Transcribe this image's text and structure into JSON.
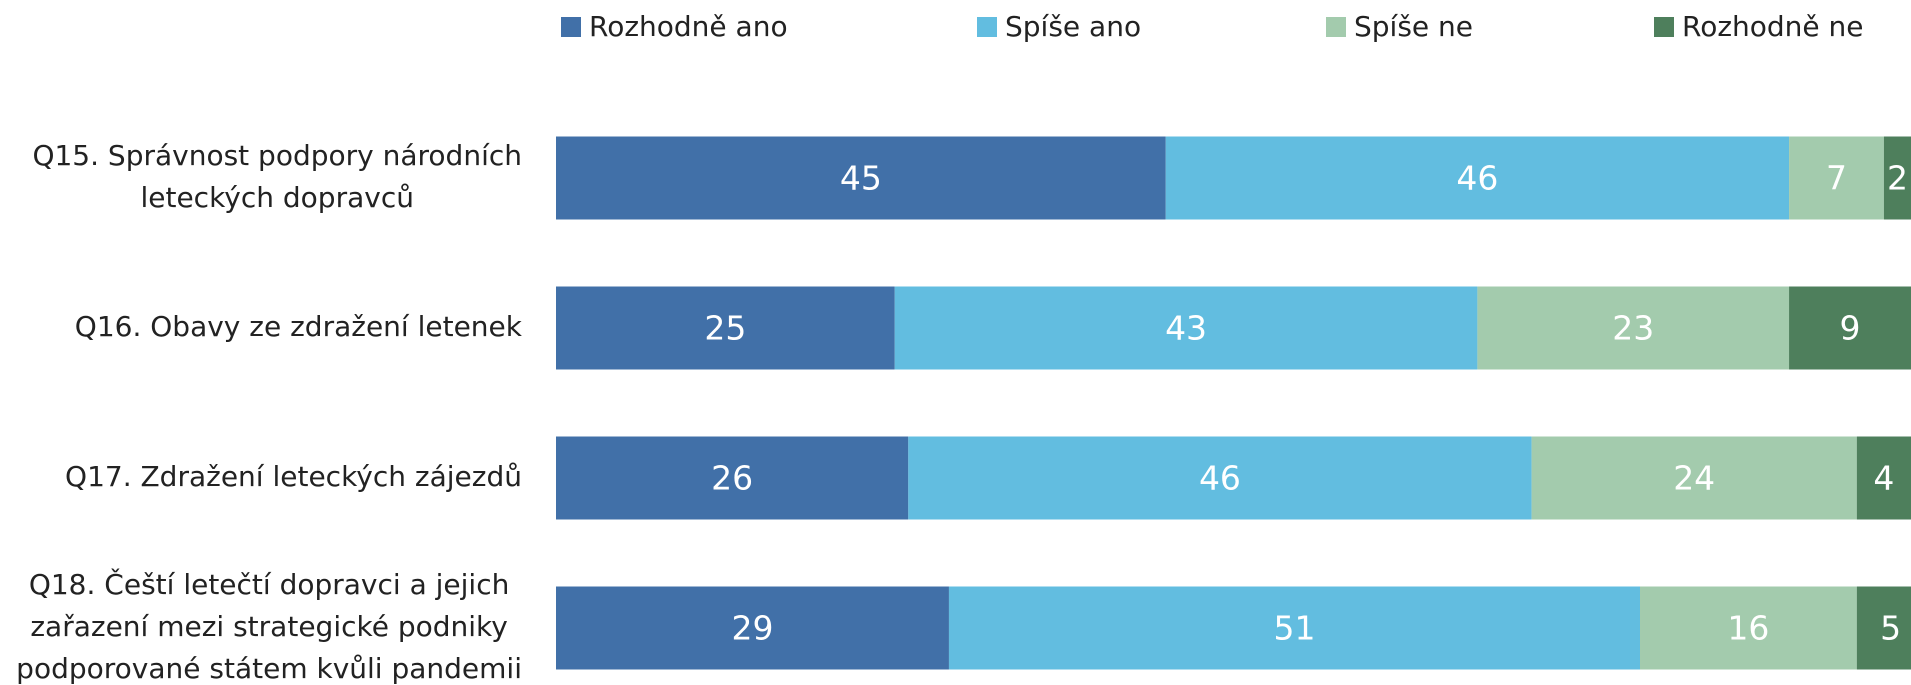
{
  "chart_data": {
    "type": "stacked-bar-horizontal",
    "categories": [
      "Q15. Správnost podpory národních\nleteckých dopravců",
      "Q16. Obavy ze zdražení letenek",
      "Q17. Zdražení leteckých zájezdů",
      "Q18. Čeští letečtí dopravci a jejich\nzařazení mezi strategické podniky\npodporované státem kvůli pandemii"
    ],
    "series": [
      {
        "name": "Rozhodně ano",
        "color": "#4170a8",
        "values": [
          45,
          25,
          26,
          29
        ]
      },
      {
        "name": "Spíše ano",
        "color": "#62bde0",
        "values": [
          46,
          43,
          46,
          51
        ]
      },
      {
        "name": "Spíše ne",
        "color": "#a3cbad",
        "values": [
          7,
          23,
          24,
          16
        ]
      },
      {
        "name": "Rozhodně ne",
        "color": "#4e7f5c",
        "values": [
          2,
          9,
          4,
          5
        ]
      }
    ],
    "xlim": [
      0,
      100
    ],
    "legend": "top"
  }
}
